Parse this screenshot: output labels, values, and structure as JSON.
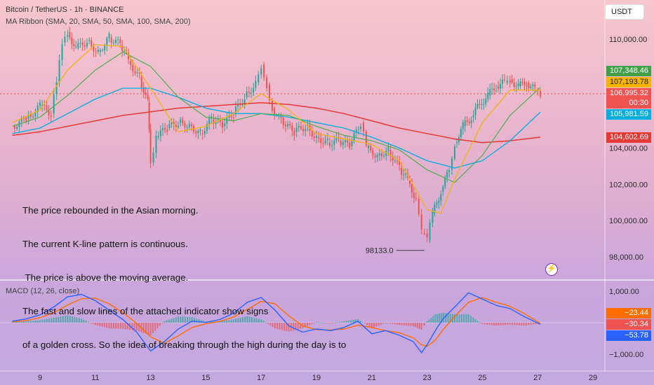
{
  "header": {
    "symbol_title": "Bitcoin / TetherUS · 1h · BINANCE",
    "ma_legend": "MA Ribbon (SMA, 20, SMA, 50, SMA, 100, SMA, 200)",
    "macd_legend": "MACD (12, 26, close)",
    "currency_button": "USDT"
  },
  "annotation": {
    "lines": [
      "The price rebounded in the Asian morning.",
      "The current K-line pattern is continuous.",
      " The price is above the moving average.",
      "The fast and slow lines of the attached indicator show signs",
      "of a golden cross. So the idea of breaking through the high during the day is to"
    ],
    "low_label": "98133.0",
    "low_value": 98133.0
  },
  "colors": {
    "up": "#26a69a",
    "down": "#ef5350",
    "sma20": "#f5b400",
    "sma50": "#4caf50",
    "sma100": "#00aee0",
    "sma200": "#e53935",
    "macd": "#2962ff",
    "signal": "#ff6d00"
  },
  "badges": [
    {
      "name": "sma50-badge",
      "text": "107,348.46",
      "color": "#43a047",
      "value": 107348.46
    },
    {
      "name": "sma20-badge",
      "text": "107,193.78",
      "color": "#f5b400",
      "value": 107193.78
    },
    {
      "name": "price-badge",
      "text": "106,995.32",
      "color": "#ef5350",
      "value": 106995.32
    },
    {
      "name": "countdown-badge",
      "text": "00:30",
      "color": "#ef5350"
    },
    {
      "name": "sma100-badge",
      "text": "105,981.59",
      "color": "#00aee0",
      "value": 105981.59
    },
    {
      "name": "sma200-badge",
      "text": "104,602.69",
      "color": "#e53935",
      "value": 104602.69
    }
  ],
  "macd_badges": [
    {
      "name": "signal-badge",
      "text": "−23.44",
      "color": "#ff6d00"
    },
    {
      "name": "histogram-badge",
      "text": "−30.34",
      "color": "#ef5350"
    },
    {
      "name": "macd-badge",
      "text": "−53.78",
      "color": "#2962ff"
    }
  ],
  "chart_data": [
    {
      "type": "candlestick",
      "title": "Bitcoin / TetherUS · 1h · BINANCE",
      "x_ticks": [
        "9",
        "11",
        "13",
        "15",
        "17",
        "19",
        "21",
        "23",
        "25",
        "27",
        "29"
      ],
      "y_ticks": [
        "110,000.00",
        "104,000.00",
        "102,000.00",
        "100,000.00",
        "98,000.00"
      ],
      "ylim": [
        97000,
        111500
      ],
      "last_price": 106995.32,
      "current_level_dotted": 106995.32,
      "closes": [
        [
          8.0,
          105200
        ],
        [
          8.5,
          105600
        ],
        [
          9.0,
          106300
        ],
        [
          9.4,
          105900
        ],
        [
          9.6,
          107600
        ],
        [
          9.8,
          109800
        ],
        [
          10.0,
          110400
        ],
        [
          10.3,
          109500
        ],
        [
          10.7,
          109900
        ],
        [
          11.1,
          109300
        ],
        [
          11.5,
          110100
        ],
        [
          11.9,
          109700
        ],
        [
          12.2,
          108800
        ],
        [
          12.6,
          107900
        ],
        [
          12.9,
          106500
        ],
        [
          13.0,
          103200
        ],
        [
          13.2,
          104600
        ],
        [
          13.6,
          105100
        ],
        [
          14.0,
          105400
        ],
        [
          14.4,
          105300
        ],
        [
          14.8,
          104800
        ],
        [
          15.2,
          105600
        ],
        [
          15.6,
          105200
        ],
        [
          16.0,
          105900
        ],
        [
          16.4,
          106800
        ],
        [
          16.8,
          107600
        ],
        [
          17.0,
          108600
        ],
        [
          17.2,
          107500
        ],
        [
          17.4,
          106200
        ],
        [
          17.8,
          105300
        ],
        [
          18.2,
          104900
        ],
        [
          18.6,
          105200
        ],
        [
          19.0,
          104600
        ],
        [
          19.4,
          104300
        ],
        [
          19.8,
          104400
        ],
        [
          20.2,
          104100
        ],
        [
          20.6,
          105400
        ],
        [
          20.8,
          104000
        ],
        [
          21.2,
          103600
        ],
        [
          21.6,
          103900
        ],
        [
          22.0,
          102900
        ],
        [
          22.3,
          102200
        ],
        [
          22.6,
          101200
        ],
        [
          22.8,
          99300
        ],
        [
          23.0,
          98900
        ],
        [
          23.2,
          100400
        ],
        [
          23.5,
          101600
        ],
        [
          23.8,
          102800
        ],
        [
          24.0,
          104300
        ],
        [
          24.3,
          105200
        ],
        [
          24.6,
          105700
        ],
        [
          24.9,
          106400
        ],
        [
          25.2,
          106900
        ],
        [
          25.5,
          107400
        ],
        [
          25.8,
          107600
        ],
        [
          26.0,
          107800
        ],
        [
          26.3,
          107400
        ],
        [
          26.6,
          107600
        ],
        [
          26.9,
          107200
        ],
        [
          27.1,
          107000
        ]
      ],
      "sma20": [
        [
          8.0,
          105400
        ],
        [
          9.0,
          106100
        ],
        [
          10.0,
          108300
        ],
        [
          11.0,
          109700
        ],
        [
          12.0,
          109600
        ],
        [
          13.0,
          107300
        ],
        [
          14.0,
          104900
        ],
        [
          15.0,
          105200
        ],
        [
          16.0,
          105900
        ],
        [
          17.0,
          107000
        ],
        [
          18.0,
          106100
        ],
        [
          19.0,
          104800
        ],
        [
          20.0,
          104500
        ],
        [
          21.0,
          104200
        ],
        [
          22.0,
          103300
        ],
        [
          23.0,
          100600
        ],
        [
          23.5,
          100400
        ],
        [
          24.0,
          102300
        ],
        [
          25.0,
          105400
        ],
        [
          26.0,
          107200
        ],
        [
          27.1,
          107194
        ]
      ],
      "sma50": [
        [
          8.0,
          105200
        ],
        [
          9.0,
          105700
        ],
        [
          10.0,
          106900
        ],
        [
          11.0,
          108300
        ],
        [
          12.0,
          109300
        ],
        [
          13.0,
          108500
        ],
        [
          14.0,
          106800
        ],
        [
          15.0,
          105700
        ],
        [
          16.0,
          105500
        ],
        [
          17.0,
          105900
        ],
        [
          18.0,
          105800
        ],
        [
          19.0,
          105200
        ],
        [
          20.0,
          104700
        ],
        [
          21.0,
          104400
        ],
        [
          22.0,
          103900
        ],
        [
          23.0,
          102800
        ],
        [
          24.0,
          102100
        ],
        [
          25.0,
          103600
        ],
        [
          26.0,
          105800
        ],
        [
          27.1,
          107348
        ]
      ],
      "sma100": [
        [
          8.0,
          104800
        ],
        [
          9.0,
          105100
        ],
        [
          10.0,
          105900
        ],
        [
          11.0,
          106700
        ],
        [
          12.0,
          107300
        ],
        [
          13.0,
          107300
        ],
        [
          14.0,
          106800
        ],
        [
          15.0,
          106200
        ],
        [
          16.0,
          105900
        ],
        [
          17.0,
          105900
        ],
        [
          18.0,
          105700
        ],
        [
          19.0,
          105400
        ],
        [
          20.0,
          105100
        ],
        [
          21.0,
          104600
        ],
        [
          22.0,
          104000
        ],
        [
          23.0,
          103300
        ],
        [
          24.0,
          102900
        ],
        [
          25.0,
          103300
        ],
        [
          26.0,
          104400
        ],
        [
          27.1,
          105982
        ]
      ],
      "sma200": [
        [
          8.0,
          104700
        ],
        [
          9.0,
          104900
        ],
        [
          10.0,
          105200
        ],
        [
          11.0,
          105500
        ],
        [
          12.0,
          105800
        ],
        [
          13.0,
          106000
        ],
        [
          14.0,
          106200
        ],
        [
          15.0,
          106300
        ],
        [
          16.0,
          106400
        ],
        [
          17.0,
          106500
        ],
        [
          18.0,
          106400
        ],
        [
          19.0,
          106200
        ],
        [
          20.0,
          105900
        ],
        [
          21.0,
          105500
        ],
        [
          22.0,
          105100
        ],
        [
          23.0,
          104800
        ],
        [
          24.0,
          104500
        ],
        [
          25.0,
          104300
        ],
        [
          26.0,
          104400
        ],
        [
          27.1,
          104603
        ]
      ]
    },
    {
      "type": "line",
      "title": "MACD (12, 26, close)",
      "y_ticks": [
        "1,000.00",
        "−1,000.00"
      ],
      "ylim": [
        -1200,
        1200
      ],
      "macd": [
        [
          8.0,
          50
        ],
        [
          8.5,
          120
        ],
        [
          9.0,
          250
        ],
        [
          9.5,
          500
        ],
        [
          10.0,
          820
        ],
        [
          10.5,
          900
        ],
        [
          11.0,
          700
        ],
        [
          11.5,
          400
        ],
        [
          12.0,
          100
        ],
        [
          12.5,
          -300
        ],
        [
          13.0,
          -900
        ],
        [
          13.5,
          -600
        ],
        [
          14.0,
          -200
        ],
        [
          14.5,
          50
        ],
        [
          15.0,
          10
        ],
        [
          15.5,
          100
        ],
        [
          16.0,
          300
        ],
        [
          16.5,
          650
        ],
        [
          17.0,
          800
        ],
        [
          17.5,
          400
        ],
        [
          18.0,
          -100
        ],
        [
          18.5,
          -300
        ],
        [
          19.0,
          -200
        ],
        [
          19.5,
          -250
        ],
        [
          20.0,
          -150
        ],
        [
          20.5,
          50
        ],
        [
          21.0,
          -350
        ],
        [
          21.5,
          -250
        ],
        [
          22.0,
          -400
        ],
        [
          22.5,
          -600
        ],
        [
          22.8,
          -950
        ],
        [
          23.0,
          -700
        ],
        [
          23.3,
          -250
        ],
        [
          23.6,
          150
        ],
        [
          24.0,
          500
        ],
        [
          24.5,
          950
        ],
        [
          25.0,
          750
        ],
        [
          25.5,
          550
        ],
        [
          26.0,
          450
        ],
        [
          26.5,
          200
        ],
        [
          27.1,
          -54
        ]
      ],
      "signal": [
        [
          8.0,
          20
        ],
        [
          8.5,
          70
        ],
        [
          9.0,
          160
        ],
        [
          9.5,
          320
        ],
        [
          10.0,
          560
        ],
        [
          10.5,
          760
        ],
        [
          11.0,
          780
        ],
        [
          11.5,
          600
        ],
        [
          12.0,
          320
        ],
        [
          12.5,
          -20
        ],
        [
          13.0,
          -450
        ],
        [
          13.5,
          -650
        ],
        [
          14.0,
          -420
        ],
        [
          14.5,
          -150
        ],
        [
          15.0,
          -30
        ],
        [
          15.5,
          40
        ],
        [
          16.0,
          180
        ],
        [
          16.5,
          420
        ],
        [
          17.0,
          680
        ],
        [
          17.5,
          600
        ],
        [
          18.0,
          220
        ],
        [
          18.5,
          -100
        ],
        [
          19.0,
          -220
        ],
        [
          19.5,
          -230
        ],
        [
          20.0,
          -200
        ],
        [
          20.5,
          -80
        ],
        [
          21.0,
          -150
        ],
        [
          21.5,
          -250
        ],
        [
          22.0,
          -320
        ],
        [
          22.5,
          -480
        ],
        [
          22.8,
          -700
        ],
        [
          23.0,
          -750
        ],
        [
          23.3,
          -550
        ],
        [
          23.6,
          -200
        ],
        [
          24.0,
          200
        ],
        [
          24.5,
          650
        ],
        [
          25.0,
          800
        ],
        [
          25.5,
          650
        ],
        [
          26.0,
          520
        ],
        [
          26.5,
          300
        ],
        [
          27.1,
          -23
        ]
      ],
      "histogram_last": -30.34
    }
  ]
}
